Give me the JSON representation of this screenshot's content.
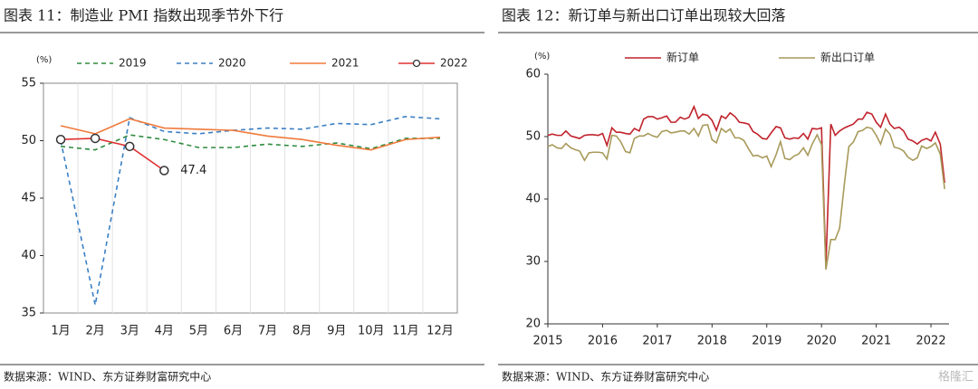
{
  "chart_data": [
    {
      "type": "line",
      "title": "图表 11：制造业 PMI 指数出现季节外下行",
      "y_label": "(%)",
      "categories": [
        "1月",
        "2月",
        "3月",
        "4月",
        "5月",
        "6月",
        "7月",
        "8月",
        "9月",
        "10月",
        "11月",
        "12月"
      ],
      "series": [
        {
          "name": "2019",
          "color": "#2e8b3e",
          "dash": true,
          "markers": false,
          "values": [
            49.5,
            49.2,
            50.5,
            50.1,
            49.4,
            49.4,
            49.7,
            49.5,
            49.8,
            49.3,
            50.2,
            50.2
          ]
        },
        {
          "name": "2020",
          "color": "#3b7fc4",
          "dash": true,
          "markers": false,
          "values": [
            50.0,
            35.7,
            52.0,
            50.8,
            50.6,
            50.9,
            51.1,
            51.0,
            51.5,
            51.4,
            52.1,
            51.9
          ]
        },
        {
          "name": "2021",
          "color": "#f07a3c",
          "dash": false,
          "markers": false,
          "values": [
            51.3,
            50.6,
            51.9,
            51.1,
            51.0,
            50.9,
            50.4,
            50.1,
            49.6,
            49.2,
            50.1,
            50.3
          ]
        },
        {
          "name": "2022",
          "color": "#e03030",
          "dash": false,
          "markers": true,
          "values": [
            50.1,
            50.2,
            49.5,
            47.4,
            null,
            null,
            null,
            null,
            null,
            null,
            null,
            null
          ]
        }
      ],
      "annotation": "47.4",
      "ylim": [
        35,
        55
      ],
      "yticks": [
        35,
        40,
        45,
        50,
        55
      ],
      "grid": true,
      "source": "数据来源：WIND、东方证券财富研究中心"
    },
    {
      "type": "line",
      "title": "图表 12：新订单与新出口订单出现较大回落",
      "y_label": "(%)",
      "x": [
        2015.0,
        2015.08,
        2015.17,
        2015.25,
        2015.33,
        2015.42,
        2015.5,
        2015.58,
        2015.67,
        2015.75,
        2015.83,
        2015.92,
        2016.0,
        2016.08,
        2016.17,
        2016.25,
        2016.33,
        2016.42,
        2016.5,
        2016.58,
        2016.67,
        2016.75,
        2016.83,
        2016.92,
        2017.0,
        2017.08,
        2017.17,
        2017.25,
        2017.33,
        2017.42,
        2017.5,
        2017.58,
        2017.67,
        2017.75,
        2017.83,
        2017.92,
        2018.0,
        2018.08,
        2018.17,
        2018.25,
        2018.33,
        2018.42,
        2018.5,
        2018.58,
        2018.67,
        2018.75,
        2018.83,
        2018.92,
        2019.0,
        2019.08,
        2019.17,
        2019.25,
        2019.33,
        2019.42,
        2019.5,
        2019.58,
        2019.67,
        2019.75,
        2019.83,
        2019.92,
        2020.0,
        2020.08,
        2020.17,
        2020.25,
        2020.33,
        2020.42,
        2020.5,
        2020.58,
        2020.67,
        2020.75,
        2020.83,
        2020.92,
        2021.0,
        2021.08,
        2021.17,
        2021.25,
        2021.33,
        2021.42,
        2021.5,
        2021.58,
        2021.67,
        2021.75,
        2021.83,
        2021.92,
        2022.0,
        2022.08,
        2022.17,
        2022.25
      ],
      "series": [
        {
          "name": "新订单",
          "color": "#c0232c",
          "dash": false,
          "markers": false,
          "values": [
            50.2,
            50.4,
            50.2,
            50.2,
            50.9,
            50.1,
            49.9,
            49.7,
            50.2,
            50.3,
            50.3,
            50.2,
            50.5,
            48.6,
            51.4,
            50.7,
            50.7,
            50.5,
            50.4,
            51.3,
            50.9,
            52.8,
            53.2,
            53.2,
            52.8,
            53.0,
            53.3,
            52.3,
            52.3,
            53.1,
            52.8,
            53.1,
            54.8,
            52.9,
            53.6,
            53.4,
            52.6,
            51.0,
            53.3,
            52.9,
            53.8,
            53.2,
            52.3,
            52.2,
            52.0,
            50.8,
            50.4,
            49.7,
            49.6,
            50.6,
            51.6,
            51.4,
            49.8,
            49.6,
            49.8,
            49.7,
            50.5,
            49.6,
            51.3,
            51.2,
            51.4,
            29.3,
            52.0,
            50.2,
            50.9,
            51.4,
            51.7,
            52.0,
            52.8,
            52.8,
            53.9,
            53.6,
            52.3,
            51.5,
            53.6,
            52.0,
            51.3,
            51.5,
            50.9,
            49.6,
            49.3,
            48.8,
            49.4,
            49.7,
            49.3,
            50.7,
            48.8,
            42.6
          ]
        },
        {
          "name": "新出口订单",
          "color": "#a89a5a",
          "dash": false,
          "markers": false,
          "values": [
            48.4,
            48.7,
            48.2,
            48.1,
            48.9,
            48.2,
            47.9,
            47.7,
            46.2,
            47.4,
            47.5,
            47.5,
            47.4,
            46.4,
            50.2,
            50.1,
            49.2,
            47.6,
            47.4,
            49.7,
            50.1,
            50.1,
            50.5,
            50.1,
            49.9,
            50.8,
            51.0,
            50.6,
            50.7,
            50.9,
            50.9,
            50.4,
            51.3,
            50.1,
            51.8,
            51.9,
            49.5,
            49.0,
            51.3,
            50.7,
            51.2,
            49.8,
            49.8,
            49.4,
            48.0,
            46.9,
            47.0,
            46.6,
            46.9,
            45.2,
            47.1,
            49.2,
            46.5,
            46.3,
            46.9,
            47.2,
            48.2,
            47.0,
            48.8,
            50.3,
            48.7,
            28.7,
            33.5,
            33.5,
            35.3,
            42.6,
            48.4,
            49.1,
            50.8,
            51.0,
            51.5,
            51.3,
            50.2,
            48.8,
            51.2,
            50.4,
            48.3,
            48.1,
            47.7,
            46.7,
            46.2,
            46.6,
            48.5,
            48.1,
            48.4,
            49.0,
            47.2,
            41.6
          ]
        }
      ],
      "xlim": [
        2015,
        2022.33
      ],
      "xticks": [
        2015,
        2016,
        2017,
        2018,
        2019,
        2020,
        2021,
        2022
      ],
      "ylim": [
        20,
        60
      ],
      "yticks": [
        20,
        30,
        40,
        50,
        60
      ],
      "grid": false,
      "source": "数据来源：WIND、东方证券财富研究中心"
    }
  ],
  "watermark": "格隆汇"
}
